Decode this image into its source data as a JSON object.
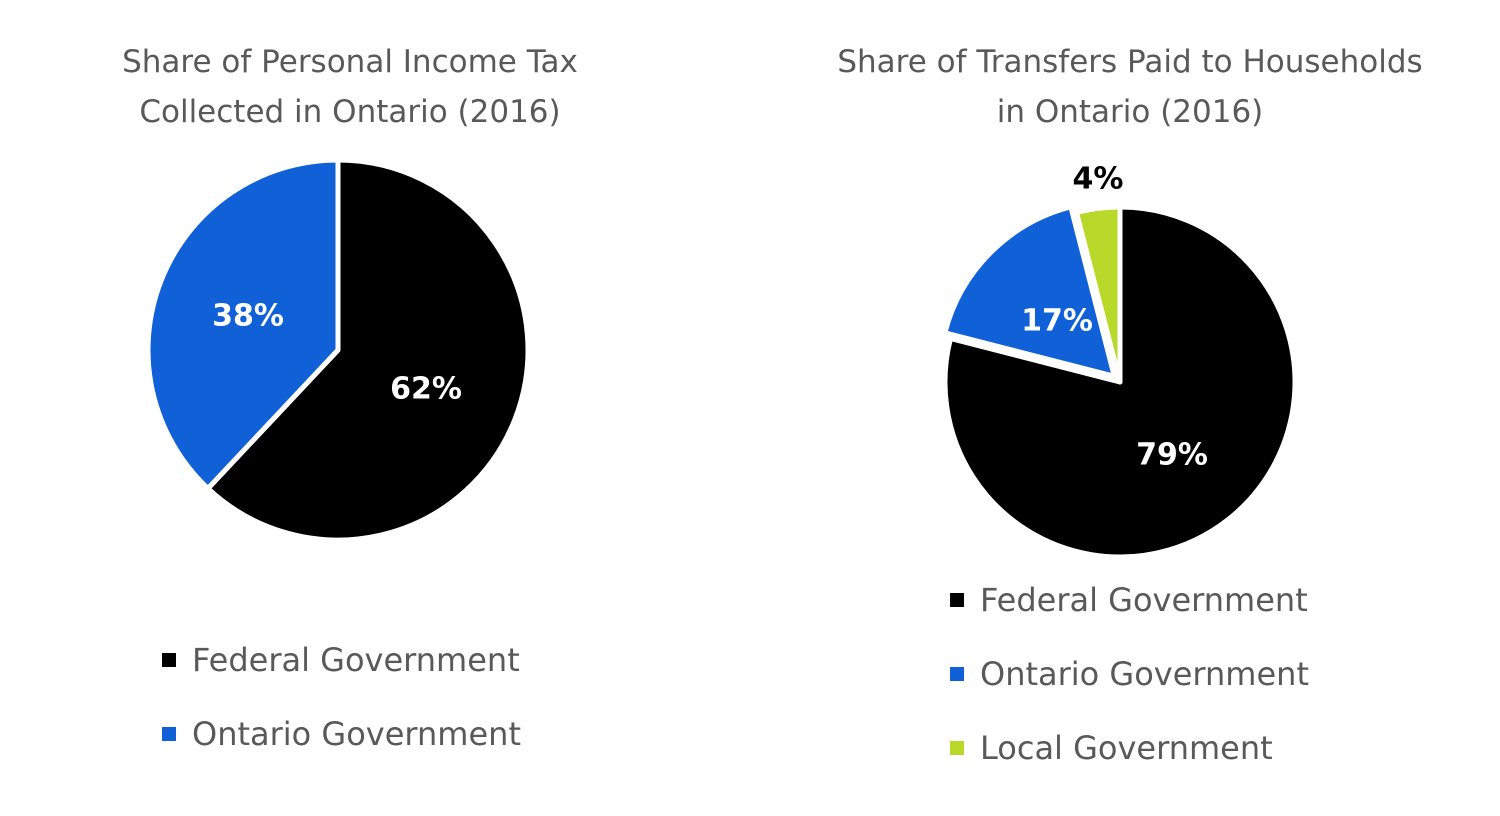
{
  "chart_data": [
    {
      "type": "pie",
      "title": [
        "Share of Personal Income Tax",
        "Collected in Ontario (2016)"
      ],
      "slices": [
        {
          "label": "Federal Government",
          "value": 62,
          "display": "62%",
          "color": "#000000",
          "label_color": "#ffffff"
        },
        {
          "label": "Ontario Government",
          "value": 38,
          "display": "38%",
          "color": "#1060d8",
          "label_color": "#ffffff"
        }
      ],
      "legend": [
        "Federal Government",
        "Ontario Government"
      ],
      "legend_position": "bottom"
    },
    {
      "type": "pie",
      "title": [
        "Share of Transfers Paid to Households",
        "in Ontario (2016)"
      ],
      "slices": [
        {
          "label": "Federal Government",
          "value": 79,
          "display": "79%",
          "color": "#000000",
          "label_color": "#ffffff"
        },
        {
          "label": "Ontario Government",
          "value": 17,
          "display": "17%",
          "color": "#1060d8",
          "label_color": "#ffffff"
        },
        {
          "label": "Local Government",
          "value": 4,
          "display": "4%",
          "color": "#b8d82a",
          "label_color": "#000000"
        }
      ],
      "legend": [
        "Federal Government",
        "Ontario Government",
        "Local Government"
      ],
      "legend_position": "bottom"
    }
  ]
}
